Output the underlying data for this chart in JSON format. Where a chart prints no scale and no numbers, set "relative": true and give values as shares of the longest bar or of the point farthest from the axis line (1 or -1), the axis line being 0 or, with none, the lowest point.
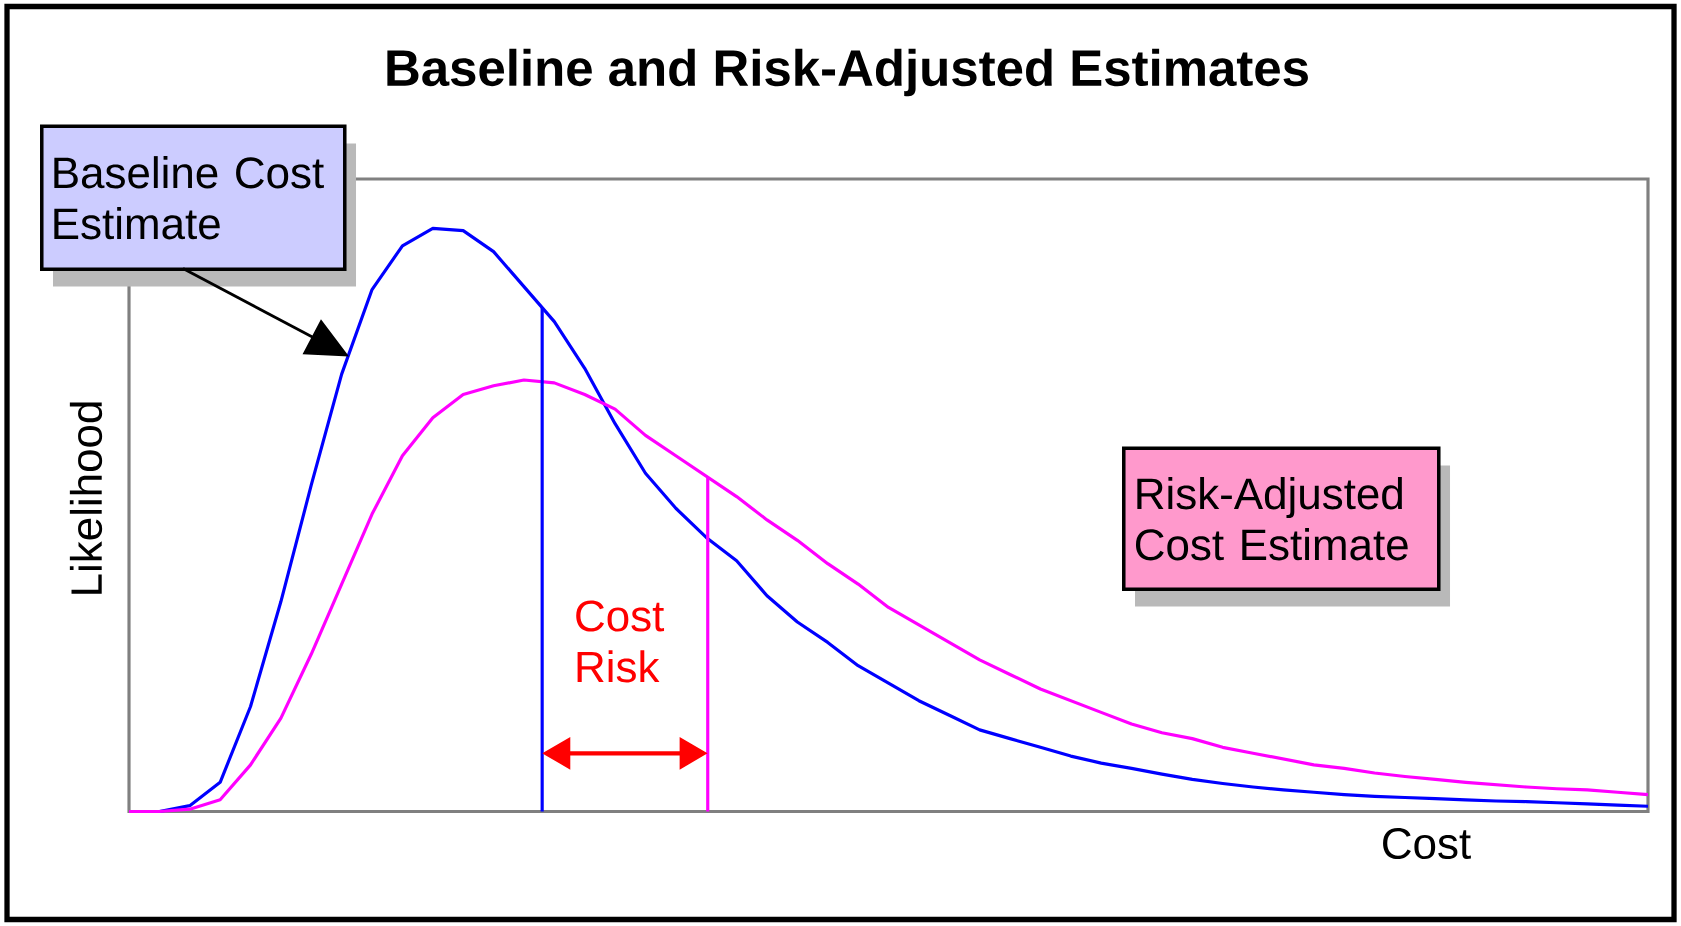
{
  "chart_data": {
    "type": "line",
    "title": "Baseline and Risk-Adjusted Estimates",
    "xlabel": "Cost",
    "ylabel": "Likelihood",
    "relative": true,
    "categories": [
      null,
      null,
      null,
      null,
      null,
      null,
      null,
      null,
      null,
      null,
      null,
      null,
      null,
      null,
      null,
      null,
      null,
      null,
      null,
      null,
      null,
      null,
      null,
      null,
      null,
      null,
      null,
      null,
      null,
      null,
      null,
      null,
      null,
      null,
      null,
      null,
      null,
      null,
      null,
      null,
      null,
      null,
      null,
      null,
      null,
      null,
      null,
      null,
      null,
      null,
      null
    ],
    "series": [
      {
        "color": "#0000ff",
        "values": [
          0,
          0,
          0.01,
          0.05,
          0.18,
          0.36,
          0.56,
          0.75,
          0.895,
          0.97,
          1.0,
          0.996,
          0.96,
          0.9,
          0.84,
          0.76,
          0.665,
          0.58,
          0.52,
          0.47,
          0.43,
          0.37,
          0.325,
          0.29,
          0.25,
          0.22,
          0.19,
          0.165,
          0.14,
          0.125,
          0.11,
          0.095,
          0.083,
          0.074,
          0.064,
          0.055,
          0.048,
          0.042,
          0.037,
          0.033,
          0.029,
          0.026,
          0.024,
          0.022,
          0.02,
          0.018,
          0.017,
          0.015,
          0.013,
          0.011,
          0.009
        ]
      },
      {
        "color": "#ff00ff",
        "values": [
          0,
          0,
          0.004,
          0.02,
          0.08,
          0.16,
          0.27,
          0.39,
          0.51,
          0.61,
          0.675,
          0.715,
          0.73,
          0.74,
          0.735,
          0.715,
          0.69,
          0.645,
          0.61,
          0.575,
          0.54,
          0.5,
          0.465,
          0.425,
          0.39,
          0.35,
          0.32,
          0.29,
          0.26,
          0.235,
          0.21,
          0.19,
          0.17,
          0.15,
          0.135,
          0.125,
          0.11,
          0.1,
          0.09,
          0.08,
          0.074,
          0.066,
          0.06,
          0.055,
          0.05,
          0.046,
          0.042,
          0.039,
          0.037,
          0.033,
          0.029
        ]
      }
    ],
    "annotations": [
      "Baseline Cost Estimate",
      "Risk-Adjusted Cost Estimate",
      "Cost Risk"
    ]
  }
}
